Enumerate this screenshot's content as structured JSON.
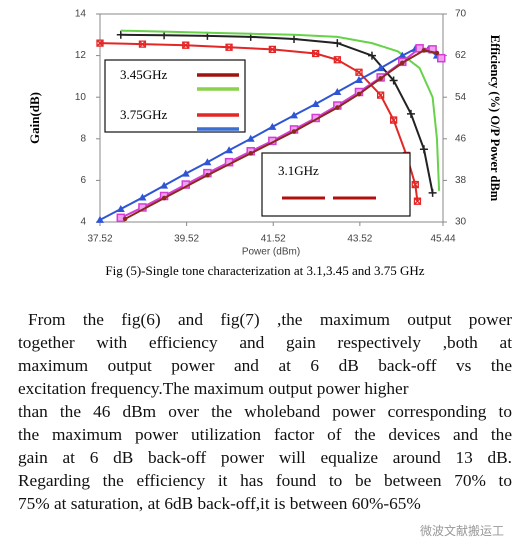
{
  "chart_data": {
    "type": "line",
    "xlabel": "Power (dBm)",
    "ylabel": "Gain(dB)",
    "y2label": "Efficiency (%) O/P Power dBm",
    "xlim": [
      37.52,
      45.44
    ],
    "xticks": [
      37.52,
      39.52,
      41.52,
      43.52,
      45.44
    ],
    "ylim": [
      4,
      14
    ],
    "yticks": [
      4,
      6,
      8,
      10,
      12,
      14
    ],
    "y2lim": [
      30,
      70
    ],
    "y2ticks": [
      30,
      38,
      46,
      54,
      62,
      70
    ],
    "series": [
      {
        "color": "#222222",
        "marker": "plus",
        "x": [
          38.0,
          39.0,
          40.0,
          41.0,
          42.0,
          43.0,
          43.8,
          44.3,
          44.7,
          45.0,
          45.2
        ],
        "values": [
          13.0,
          12.98,
          12.95,
          12.9,
          12.8,
          12.6,
          12.0,
          10.8,
          9.2,
          7.5,
          5.4
        ]
      },
      {
        "color": "#66d24a",
        "marker": "none",
        "x": [
          38.0,
          39.0,
          40.0,
          41.0,
          42.0,
          43.0,
          43.8,
          44.4,
          44.9,
          45.2,
          45.3,
          45.35
        ],
        "values": [
          13.2,
          13.15,
          13.1,
          13.05,
          13.0,
          12.9,
          12.6,
          12.2,
          11.4,
          10.0,
          8.0,
          5.5
        ]
      },
      {
        "color": "#e32626",
        "marker": "xsquare",
        "x": [
          37.52,
          38.5,
          39.5,
          40.5,
          41.5,
          42.5,
          43.0,
          43.5,
          44.0,
          44.3,
          44.6,
          44.8,
          44.85
        ],
        "values": [
          12.6,
          12.55,
          12.5,
          12.4,
          12.3,
          12.1,
          11.8,
          11.2,
          10.1,
          8.9,
          7.2,
          5.8,
          5.0
        ]
      },
      {
        "color": "#2f55d4",
        "marker": "triangle",
        "axis": "y2",
        "x": [
          37.52,
          38.0,
          38.5,
          39.0,
          39.5,
          40.0,
          40.5,
          41.0,
          41.5,
          42.0,
          42.5,
          43.0,
          43.5,
          44.0,
          44.5,
          44.8,
          45.1,
          45.3
        ],
        "values": [
          30.4,
          32.5,
          34.7,
          37.0,
          39.3,
          41.5,
          43.8,
          46.0,
          48.3,
          50.5,
          52.7,
          55.0,
          57.3,
          59.6,
          62.0,
          63.3,
          63.2,
          62.0
        ]
      },
      {
        "color": "#d63cd6",
        "marker": "square",
        "axis": "y2",
        "x": [
          38.0,
          38.5,
          39.0,
          39.5,
          40.0,
          40.5,
          41.0,
          41.5,
          42.0,
          42.5,
          43.0,
          43.5,
          44.0,
          44.5,
          44.9,
          45.2,
          45.4
        ],
        "values": [
          30.8,
          32.8,
          35.0,
          37.2,
          39.4,
          41.5,
          43.6,
          45.6,
          47.8,
          50.0,
          52.4,
          55.0,
          57.8,
          60.8,
          63.4,
          63.2,
          61.5
        ]
      },
      {
        "color": "#8b2a1a",
        "marker": "dot",
        "axis": "y2",
        "x": [
          38.1,
          39.0,
          40.0,
          41.0,
          42.0,
          43.0,
          43.5,
          44.0,
          44.5,
          45.0,
          45.3
        ],
        "values": [
          30.6,
          34.6,
          39.0,
          43.2,
          47.4,
          52.0,
          54.6,
          57.6,
          60.6,
          63.0,
          62.5
        ]
      }
    ],
    "legend_boxes": [
      {
        "entries": [
          {
            "label": "3.45GHz",
            "colors": [
              "#a0140e",
              "#8ad24a"
            ]
          },
          {
            "label": "3.75GHz",
            "colors": [
              "#e32626",
              "#3a6fd4"
            ]
          }
        ]
      },
      {
        "entries": [
          {
            "label": "3.1GHz",
            "colors": [
              "#b00f0f",
              "#b00f0f"
            ]
          }
        ]
      }
    ]
  },
  "caption": "Fig (5)-Single tone characterization at 3.1,3.45 and 3.75 GHz",
  "paragraph": [
    "From the fig(6) and fig(7) ,the maximum output power",
    "together with efficiency and gain respectively ,both at",
    "maximum output power and at 6 dB back-off  vs the",
    "excitation frequency.The maximum output power  higher",
    "than the 46 dBm over the wholeband power corresponding to",
    "the maximum power utilization factor of the devices and the",
    "gain at 6 dB back-off  power will equalize around 13 dB.",
    "Regarding the efficiency it has found to be between 70% to",
    "75% at saturation, at 6dB back-off,it is between 60%-65%"
  ],
  "watermark": "微波文献搬运工"
}
